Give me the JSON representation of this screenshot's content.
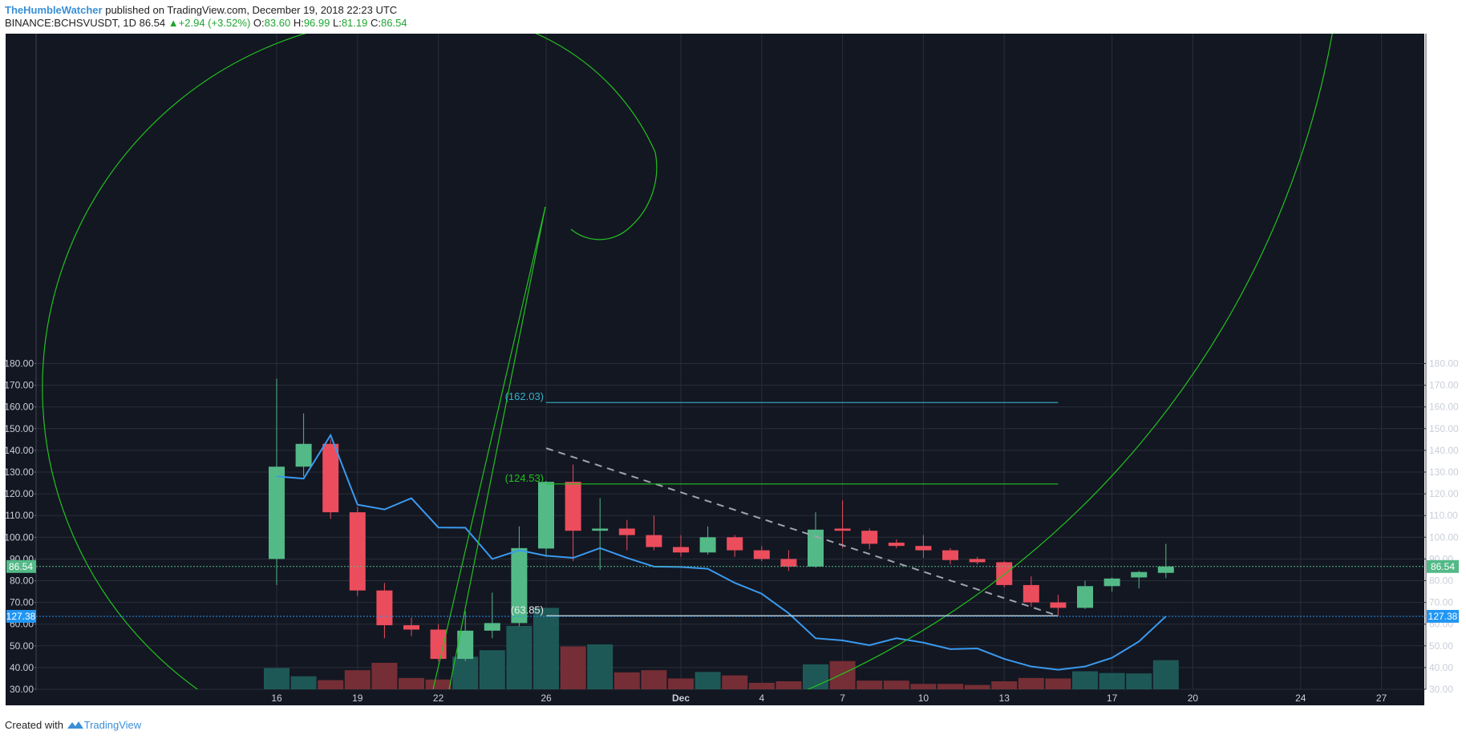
{
  "header": {
    "author": "TheHumbleWatcher",
    "published": "published on TradingView.com, December 19, 2018 22:23 UTC",
    "symbol": "BINANCE:BCHSVUSDT, 1D",
    "last": "86.54",
    "change": "+2.94 (+3.52%)",
    "o_label": "O:",
    "o_value": "83.60",
    "h_label": "H:",
    "h_value": "96.99",
    "l_label": "L:",
    "l_value": "81.19",
    "c_label": "C:",
    "c_value": "86.54"
  },
  "footer": {
    "created_with": "Created with",
    "brand": "TradingView"
  },
  "colors": {
    "background": "#131722",
    "grid": "#2a2e39",
    "bull": "#53b987",
    "bear": "#eb4d5c",
    "bull_volume": "#1f5c5a",
    "bear_volume": "#7a2f37",
    "ma_line": "#3a9aef",
    "spiral": "#22c11f",
    "fib_top": "#34b2c9",
    "fib_mid": "#22c11f",
    "fib_low": "#e8e8e8",
    "last_price_tag": "#53b987",
    "line_tag": "#2196f3",
    "trend_dash": "#9ea3ad"
  },
  "chart_data": {
    "type": "candlestick",
    "y_ticks": [
      "180.00",
      "170.00",
      "160.00",
      "150.00",
      "140.00",
      "130.00",
      "120.00",
      "110.00",
      "100.00",
      "90.00",
      "80.00",
      "70.00",
      "60.00",
      "50.00",
      "40.00",
      "30.00"
    ],
    "ylim": [
      30,
      180
    ],
    "x_labels": [
      {
        "day": 0,
        "label": "16"
      },
      {
        "day": 3,
        "label": "19"
      },
      {
        "day": 6,
        "label": "22"
      },
      {
        "day": 10,
        "label": "26"
      },
      {
        "day": 15,
        "label": "Dec"
      },
      {
        "day": 18,
        "label": "4"
      },
      {
        "day": 21,
        "label": "7"
      },
      {
        "day": 24,
        "label": "10"
      },
      {
        "day": 27,
        "label": "13"
      },
      {
        "day": 31,
        "label": "17"
      },
      {
        "day": 34,
        "label": "20"
      },
      {
        "day": 38,
        "label": "24"
      },
      {
        "day": 41,
        "label": "27"
      }
    ],
    "candles": [
      {
        "day": 0,
        "o": 90.0,
        "h": 173.0,
        "l": 78.0,
        "c": 132.5
      },
      {
        "day": 1,
        "o": 132.5,
        "h": 157.0,
        "l": 128.0,
        "c": 143.0
      },
      {
        "day": 2,
        "o": 143.0,
        "h": 145.0,
        "l": 108.5,
        "c": 111.5
      },
      {
        "day": 3,
        "o": 111.5,
        "h": 114.0,
        "l": 73.0,
        "c": 75.5
      },
      {
        "day": 4,
        "o": 75.5,
        "h": 79.0,
        "l": 53.5,
        "c": 59.5
      },
      {
        "day": 5,
        "o": 59.5,
        "h": 63.0,
        "l": 54.5,
        "c": 57.5
      },
      {
        "day": 6,
        "o": 57.5,
        "h": 60.0,
        "l": 43.0,
        "c": 44.0
      },
      {
        "day": 7,
        "o": 44.0,
        "h": 66.0,
        "l": 43.0,
        "c": 57.0
      },
      {
        "day": 8,
        "o": 57.0,
        "h": 74.5,
        "l": 53.5,
        "c": 60.5
      },
      {
        "day": 9,
        "o": 60.5,
        "h": 105.0,
        "l": 59.0,
        "c": 95.0
      },
      {
        "day": 10,
        "o": 94.8,
        "h": 126.0,
        "l": 91.0,
        "c": 125.5
      },
      {
        "day": 11,
        "o": 125.5,
        "h": 133.5,
        "l": 89.0,
        "c": 103.0
      },
      {
        "day": 12,
        "o": 103.0,
        "h": 118.0,
        "l": 85.0,
        "c": 104.0
      },
      {
        "day": 13,
        "o": 104.0,
        "h": 108.0,
        "l": 94.0,
        "c": 101.0
      },
      {
        "day": 14,
        "o": 101.0,
        "h": 110.0,
        "l": 94.0,
        "c": 95.5
      },
      {
        "day": 15,
        "o": 95.5,
        "h": 101.0,
        "l": 91.0,
        "c": 93.0
      },
      {
        "day": 16,
        "o": 93.0,
        "h": 105.0,
        "l": 92.0,
        "c": 100.0
      },
      {
        "day": 17,
        "o": 100.0,
        "h": 101.0,
        "l": 91.0,
        "c": 94.0
      },
      {
        "day": 18,
        "o": 94.0,
        "h": 96.0,
        "l": 89.0,
        "c": 90.0
      },
      {
        "day": 19,
        "o": 90.0,
        "h": 94.0,
        "l": 84.5,
        "c": 86.5
      },
      {
        "day": 20,
        "o": 86.5,
        "h": 111.5,
        "l": 86.0,
        "c": 103.5
      },
      {
        "day": 21,
        "o": 104.0,
        "h": 117.0,
        "l": 95.0,
        "c": 103.0
      },
      {
        "day": 22,
        "o": 103.0,
        "h": 104.0,
        "l": 94.5,
        "c": 97.0
      },
      {
        "day": 23,
        "o": 97.5,
        "h": 99.0,
        "l": 95.0,
        "c": 96.0
      },
      {
        "day": 24,
        "o": 96.0,
        "h": 101.0,
        "l": 90.5,
        "c": 94.0
      },
      {
        "day": 25,
        "o": 94.0,
        "h": 95.0,
        "l": 87.5,
        "c": 89.5
      },
      {
        "day": 26,
        "o": 90.0,
        "h": 91.0,
        "l": 87.5,
        "c": 88.5
      },
      {
        "day": 27,
        "o": 88.5,
        "h": 89.0,
        "l": 77.0,
        "c": 78.0
      },
      {
        "day": 28,
        "o": 78.0,
        "h": 82.0,
        "l": 68.0,
        "c": 70.0
      },
      {
        "day": 29,
        "o": 70.0,
        "h": 73.5,
        "l": 64.0,
        "c": 67.5
      },
      {
        "day": 30,
        "o": 67.5,
        "h": 80.0,
        "l": 67.0,
        "c": 77.5
      },
      {
        "day": 31,
        "o": 77.5,
        "h": 81.5,
        "l": 75.0,
        "c": 81.0
      },
      {
        "day": 32,
        "o": 81.5,
        "h": 84.5,
        "l": 76.5,
        "c": 84.0
      },
      {
        "day": 33,
        "o": 83.6,
        "h": 96.99,
        "l": 81.19,
        "c": 86.54
      }
    ],
    "volume": [
      {
        "day": 0,
        "v": 39.8,
        "up": true
      },
      {
        "day": 1,
        "v": 36.0,
        "up": true
      },
      {
        "day": 2,
        "v": 34.2,
        "up": false
      },
      {
        "day": 3,
        "v": 38.8,
        "up": false
      },
      {
        "day": 4,
        "v": 42.2,
        "up": false
      },
      {
        "day": 5,
        "v": 35.2,
        "up": false
      },
      {
        "day": 6,
        "v": 34.5,
        "up": false
      },
      {
        "day": 7,
        "v": 45.0,
        "up": true
      },
      {
        "day": 8,
        "v": 48.0,
        "up": true
      },
      {
        "day": 9,
        "v": 59.2,
        "up": true
      },
      {
        "day": 10,
        "v": 67.5,
        "up": true
      },
      {
        "day": 11,
        "v": 49.7,
        "up": false
      },
      {
        "day": 12,
        "v": 50.7,
        "up": true
      },
      {
        "day": 13,
        "v": 37.8,
        "up": false
      },
      {
        "day": 14,
        "v": 38.8,
        "up": false
      },
      {
        "day": 15,
        "v": 35.0,
        "up": false
      },
      {
        "day": 16,
        "v": 38.0,
        "up": true
      },
      {
        "day": 17,
        "v": 36.4,
        "up": false
      },
      {
        "day": 18,
        "v": 33.0,
        "up": false
      },
      {
        "day": 19,
        "v": 33.7,
        "up": false
      },
      {
        "day": 20,
        "v": 41.5,
        "up": true
      },
      {
        "day": 21,
        "v": 43.0,
        "up": false
      },
      {
        "day": 22,
        "v": 34.0,
        "up": false
      },
      {
        "day": 23,
        "v": 34.0,
        "up": false
      },
      {
        "day": 24,
        "v": 32.5,
        "up": false
      },
      {
        "day": 25,
        "v": 32.5,
        "up": false
      },
      {
        "day": 26,
        "v": 32.0,
        "up": false
      },
      {
        "day": 27,
        "v": 33.7,
        "up": false
      },
      {
        "day": 28,
        "v": 35.2,
        "up": false
      },
      {
        "day": 29,
        "v": 35.0,
        "up": false
      },
      {
        "day": 30,
        "v": 38.3,
        "up": true
      },
      {
        "day": 31,
        "v": 37.5,
        "up": true
      },
      {
        "day": 32,
        "v": 37.3,
        "up": true
      },
      {
        "day": 33,
        "v": 43.4,
        "up": true
      }
    ],
    "line": [
      {
        "day": 0,
        "y": 128.0
      },
      {
        "day": 1,
        "y": 127.0
      },
      {
        "day": 2,
        "y": 147.0
      },
      {
        "day": 3,
        "y": 115.0
      },
      {
        "day": 4,
        "y": 112.8
      },
      {
        "day": 5,
        "y": 118.0
      },
      {
        "day": 6,
        "y": 104.5
      },
      {
        "day": 7,
        "y": 104.4
      },
      {
        "day": 8,
        "y": 90.0
      },
      {
        "day": 9,
        "y": 94.0
      },
      {
        "day": 10,
        "y": 91.5
      },
      {
        "day": 11,
        "y": 90.5
      },
      {
        "day": 12,
        "y": 95.0
      },
      {
        "day": 13,
        "y": 90.5
      },
      {
        "day": 14,
        "y": 86.5
      },
      {
        "day": 15,
        "y": 86.3
      },
      {
        "day": 16,
        "y": 85.5
      },
      {
        "day": 17,
        "y": 79.0
      },
      {
        "day": 18,
        "y": 74.0
      },
      {
        "day": 19,
        "y": 65.0
      },
      {
        "day": 20,
        "y": 53.5
      },
      {
        "day": 21,
        "y": 52.5
      },
      {
        "day": 22,
        "y": 50.3
      },
      {
        "day": 23,
        "y": 53.5
      },
      {
        "day": 24,
        "y": 51.5
      },
      {
        "day": 25,
        "y": 48.5
      },
      {
        "day": 26,
        "y": 48.8
      },
      {
        "day": 27,
        "y": 44.0
      },
      {
        "day": 28,
        "y": 40.5
      },
      {
        "day": 29,
        "y": 39.0
      },
      {
        "day": 30,
        "y": 40.5
      },
      {
        "day": 31,
        "y": 44.5
      },
      {
        "day": 32,
        "y": 52.0
      },
      {
        "day": 33,
        "y": 63.6
      }
    ],
    "fib_levels": [
      {
        "label": "(162.03)",
        "y": 162.03,
        "x_start": 10,
        "x_end": 29.0,
        "color_key": "fib_top"
      },
      {
        "label": "(124.53)",
        "y": 124.53,
        "x_start": 10,
        "x_end": 29.0,
        "color_key": "fib_mid"
      },
      {
        "label": "(63.85)",
        "y": 63.85,
        "x_start": 10,
        "x_end": 29.0,
        "color_key": "fib_low"
      }
    ],
    "trend_line": {
      "from_day": 10,
      "from_y": 141.0,
      "to_day": 29.0,
      "to_y": 63.85
    },
    "price_tags": [
      {
        "label": "86.54",
        "y": 86.54,
        "color_key": "last_price_tag"
      },
      {
        "label": "127.38",
        "y": 63.6,
        "color_key": "line_tag"
      }
    ]
  }
}
